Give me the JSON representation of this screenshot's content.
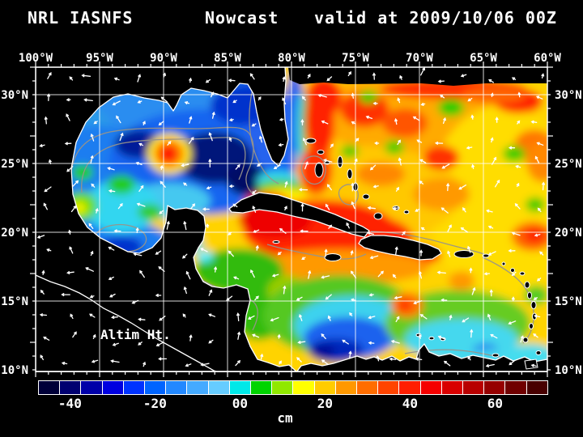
{
  "title": {
    "left": "NRL IASNFS",
    "center": "Nowcast",
    "right": "valid at 2009/10/06 00Z"
  },
  "map": {
    "annotation": "Altim Ht."
  },
  "colorbar_unit": "cm",
  "chart_data": {
    "type": "heatmap",
    "title": "NRL IASNFS Nowcast valid at 2009/10/06 00Z",
    "variable": "Altim Ht.",
    "units": "cm",
    "lon_ticks": [
      "100°W",
      "95°W",
      "90°W",
      "85°W",
      "80°W",
      "75°W",
      "70°W",
      "65°W",
      "60°W"
    ],
    "lat_ticks": [
      "30°N",
      "25°N",
      "20°N",
      "15°N",
      "10°N"
    ],
    "lon_range_deg_w": [
      100,
      60
    ],
    "lat_range_deg_n": [
      10,
      32
    ],
    "grid": "on, 5 degree graticule, white",
    "legend_position": "bottom colorbar",
    "colorbar": {
      "min": -47.5,
      "max": 72.5,
      "step_cm": 5,
      "tick_values": [
        -40,
        -20,
        0,
        20,
        40,
        60
      ],
      "tick_labels": [
        "-40",
        "-20",
        "00",
        "20",
        "40",
        "60"
      ],
      "colors": [
        "#000038",
        "#000070",
        "#0000a8",
        "#0000e0",
        "#0032ff",
        "#0064ff",
        "#2288ff",
        "#44aaff",
        "#66ccff",
        "#00e8e8",
        "#00d400",
        "#90e800",
        "#ffff00",
        "#ffcc00",
        "#ff9800",
        "#ff6d00",
        "#ff4400",
        "#ff1e00",
        "#f50000",
        "#d90000",
        "#b80000",
        "#960000",
        "#700000",
        "#480000"
      ]
    },
    "features": [
      {
        "region": "Gulf of Mexico background",
        "lon": -94,
        "lat": 25,
        "approx_value_cm": -20
      },
      {
        "region": "Loop Current warm-core eddy",
        "lon": -91.5,
        "lat": 25.7,
        "approx_value_cm": 45
      },
      {
        "region": "Central-east Gulf of Mexico low",
        "lon": -86.5,
        "lat": 24.5,
        "approx_value_cm": -45
      },
      {
        "region": "Bay of Campeche low",
        "lon": -94.5,
        "lat": 19.5,
        "approx_value_cm": -30
      },
      {
        "region": "Gulf Stream off Florida",
        "lon": -78,
        "lat": 28,
        "approx_value_cm": 45
      },
      {
        "region": "NW Caribbean (Cayman Sea) high",
        "lon": -81,
        "lat": 19.5,
        "approx_value_cm": 50
      },
      {
        "region": "Honduras-Nicaragua shelf",
        "lon": -84,
        "lat": 16,
        "approx_value_cm": 5
      },
      {
        "region": "Colombia Basin cyclonic gyre",
        "lon": -76.5,
        "lat": 11.5,
        "approx_value_cm": -40
      },
      {
        "region": "Eastern Caribbean low",
        "lon": -66,
        "lat": 13,
        "approx_value_cm": -5
      },
      {
        "region": "Subtropical Atlantic band along 30N",
        "lon": -70,
        "lat": 29.8,
        "approx_value_cm": 45
      },
      {
        "region": "Atlantic east of Lesser Antilles high",
        "lon": -61,
        "lat": 19.5,
        "approx_value_cm": 45
      },
      {
        "region": "Atlantic background",
        "lon": -68,
        "lat": 24,
        "approx_value_cm": 25
      },
      {
        "region": "Masked model boundary",
        "lon": -70,
        "lat": 31.5,
        "approx_value_cm": null
      }
    ],
    "overlays": [
      "white 1-degree tick marks",
      "white surface current/wind arrows",
      "gray bathymetry contours",
      "black land with white coastline"
    ]
  }
}
